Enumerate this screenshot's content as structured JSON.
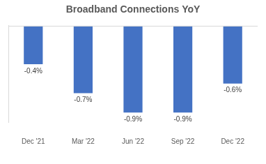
{
  "chart_data": {
    "type": "bar",
    "title": "Broadband Connections YoY",
    "categories": [
      "Dec '21",
      "Mar '22",
      "Jun '22",
      "Sep '22",
      "Dec '22"
    ],
    "values": [
      -0.4,
      -0.7,
      -0.9,
      -0.9,
      -0.6
    ],
    "value_labels": [
      "-0.4%",
      "-0.7%",
      "-0.9%",
      "-0.9%",
      "-0.6%"
    ],
    "color": "#4472c4",
    "ylim": [
      -1,
      0
    ],
    "grid": false,
    "data_labels": true,
    "tick_labels": "x"
  }
}
